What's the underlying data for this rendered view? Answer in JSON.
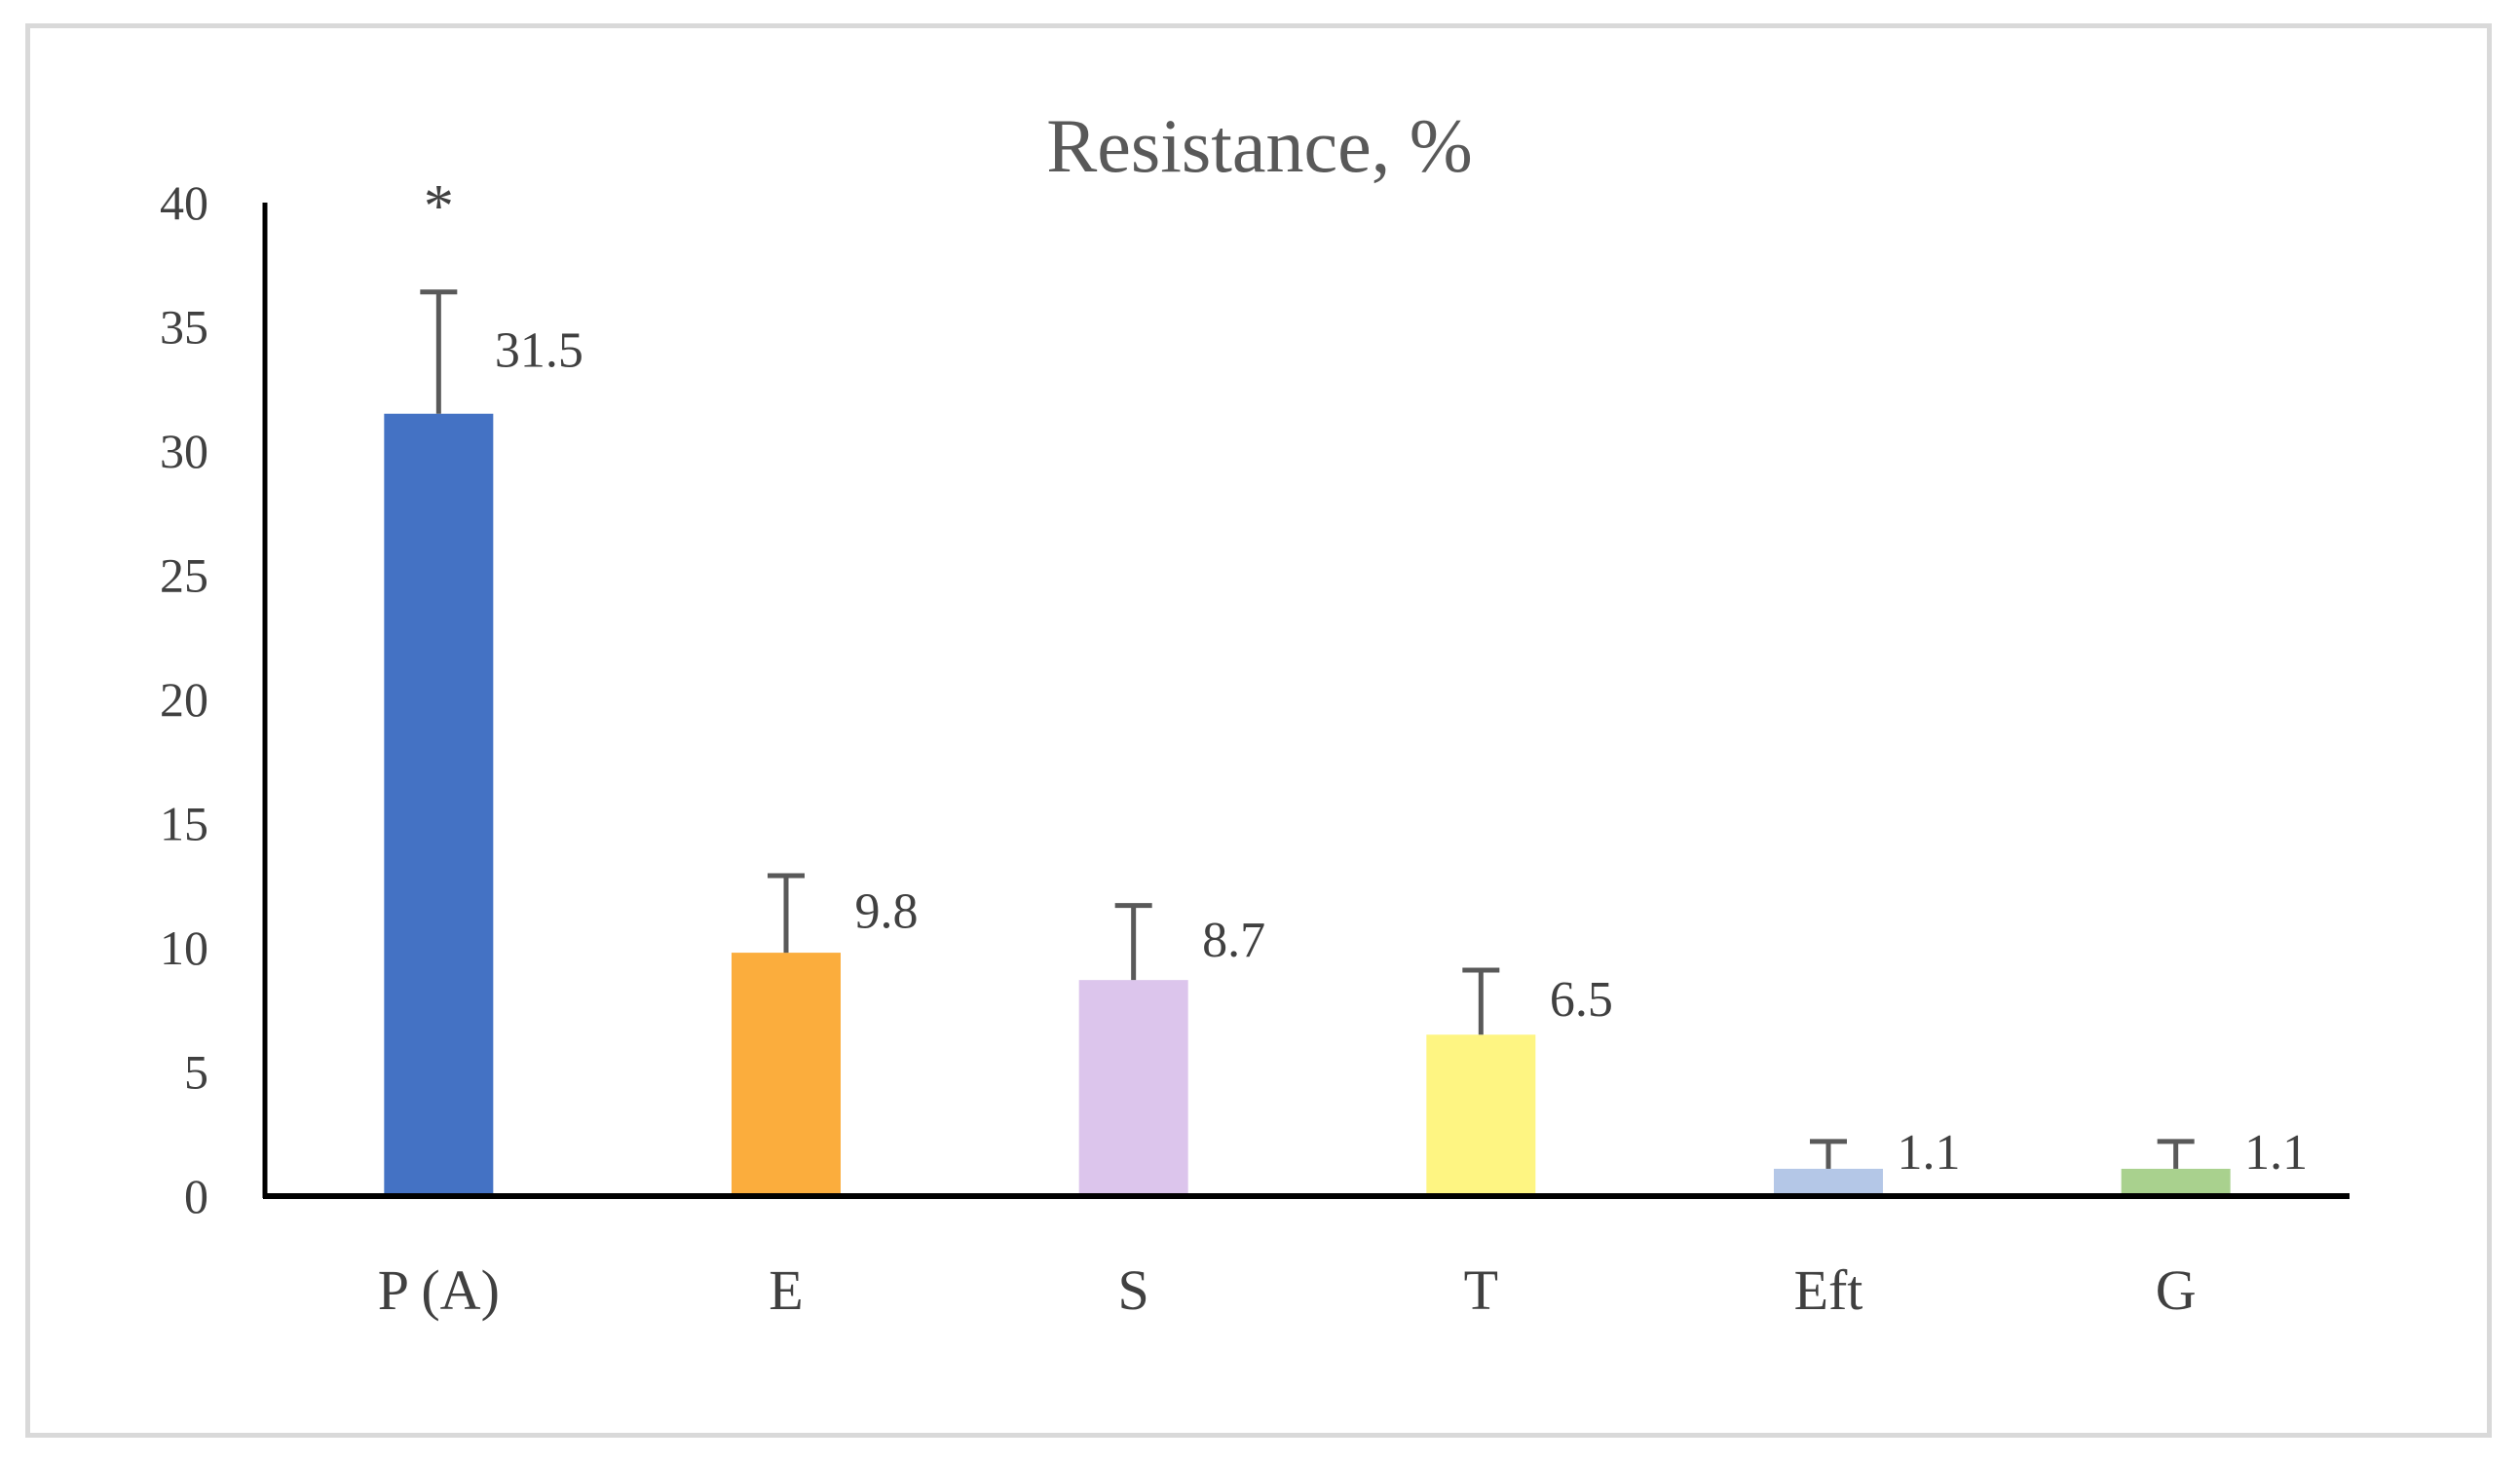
{
  "chart_data": {
    "type": "bar",
    "title": "Resistance, %",
    "xlabel": "",
    "ylabel": "",
    "categories": [
      "P (A)",
      "E",
      "S",
      "T",
      "Eft",
      "G"
    ],
    "series": [
      {
        "values": [
          31.5,
          9.8,
          8.7,
          6.5,
          1.1,
          1.1
        ],
        "data_labels": [
          "31.5",
          "9.8",
          "8.7",
          "6.5",
          "1.1",
          "1.1"
        ],
        "error_upper": [
          4.9,
          3.1,
          3.0,
          2.6,
          1.1,
          1.1
        ],
        "colors": [
          "#4472c4",
          "#fbad3d",
          "#dcc5ec",
          "#fef582",
          "#b4c7e7",
          "#a9d18e"
        ]
      }
    ],
    "ylim": [
      0,
      40
    ],
    "yticks": [
      "0",
      "5",
      "10",
      "15",
      "20",
      "25",
      "30",
      "35",
      "40"
    ],
    "ytick_values": [
      0,
      5,
      10,
      15,
      20,
      25,
      30,
      35,
      40
    ],
    "annotations": [
      {
        "category": "P (A)",
        "text": "*"
      }
    ],
    "grid": false,
    "legend": "none",
    "error_bar_color": "#595959",
    "axis_color": "#000000"
  }
}
